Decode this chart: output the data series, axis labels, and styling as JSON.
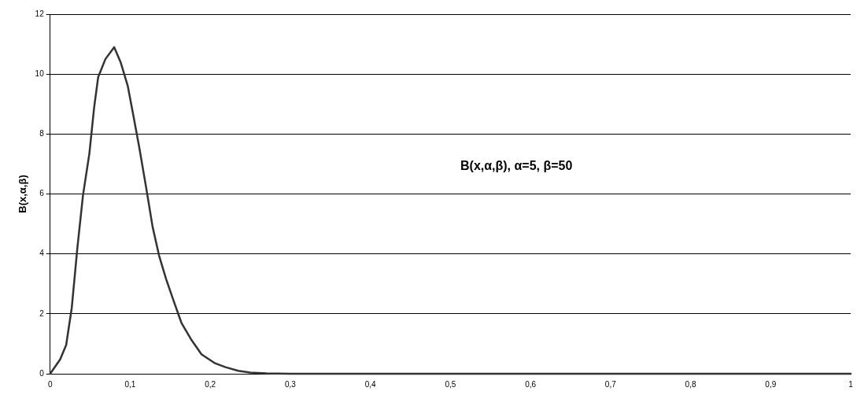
{
  "chart_data": {
    "type": "line",
    "ylabel": "B(x,α,β)",
    "annotations": [
      "B(x,α,β), α=5, β=50"
    ],
    "series": [
      {
        "color": "#333333",
        "x": [
          0,
          0.0125,
          0.02,
          0.027,
          0.034,
          0.041,
          0.049,
          0.055,
          0.06,
          0.069,
          0.08,
          0.088,
          0.097,
          0.103,
          0.111,
          0.12,
          0.128,
          0.136,
          0.145,
          0.154,
          0.164,
          0.176,
          0.189,
          0.206,
          0.219,
          0.235,
          0.25,
          0.27,
          0.3,
          0.4,
          0.5,
          0.6,
          0.7,
          0.8,
          0.9,
          1
        ],
        "values": [
          0,
          0.48,
          0.96,
          2.2,
          4.2,
          5.95,
          7.35,
          8.9,
          9.9,
          10.5,
          10.9,
          10.4,
          9.6,
          8.75,
          7.6,
          6.2,
          4.9,
          3.95,
          3.15,
          2.45,
          1.7,
          1.15,
          0.65,
          0.35,
          0.22,
          0.1,
          0.04,
          0.01,
          0,
          0,
          0,
          0,
          0,
          0,
          0,
          0
        ]
      }
    ],
    "xlim": [
      0,
      1
    ],
    "ylim": [
      0,
      12
    ],
    "xticks": [
      0,
      {
        "value": 0.1,
        "label": "0,1"
      },
      {
        "value": 0.2,
        "label": "0,2"
      },
      {
        "value": 0.3,
        "label": "0,3"
      },
      {
        "value": 0.4,
        "label": "0,4"
      },
      {
        "value": 0.5,
        "label": "0,5"
      },
      {
        "value": 0.6,
        "label": "0,6"
      },
      {
        "value": 0.7,
        "label": "0,7"
      },
      {
        "value": 0.8,
        "label": "0,8"
      },
      {
        "value": 0.9,
        "label": "0,9"
      },
      1
    ],
    "yticks": [
      0,
      2,
      4,
      6,
      8,
      10,
      12
    ],
    "grid": "y",
    "legend": false,
    "marker": "none",
    "line_style": "solid"
  }
}
